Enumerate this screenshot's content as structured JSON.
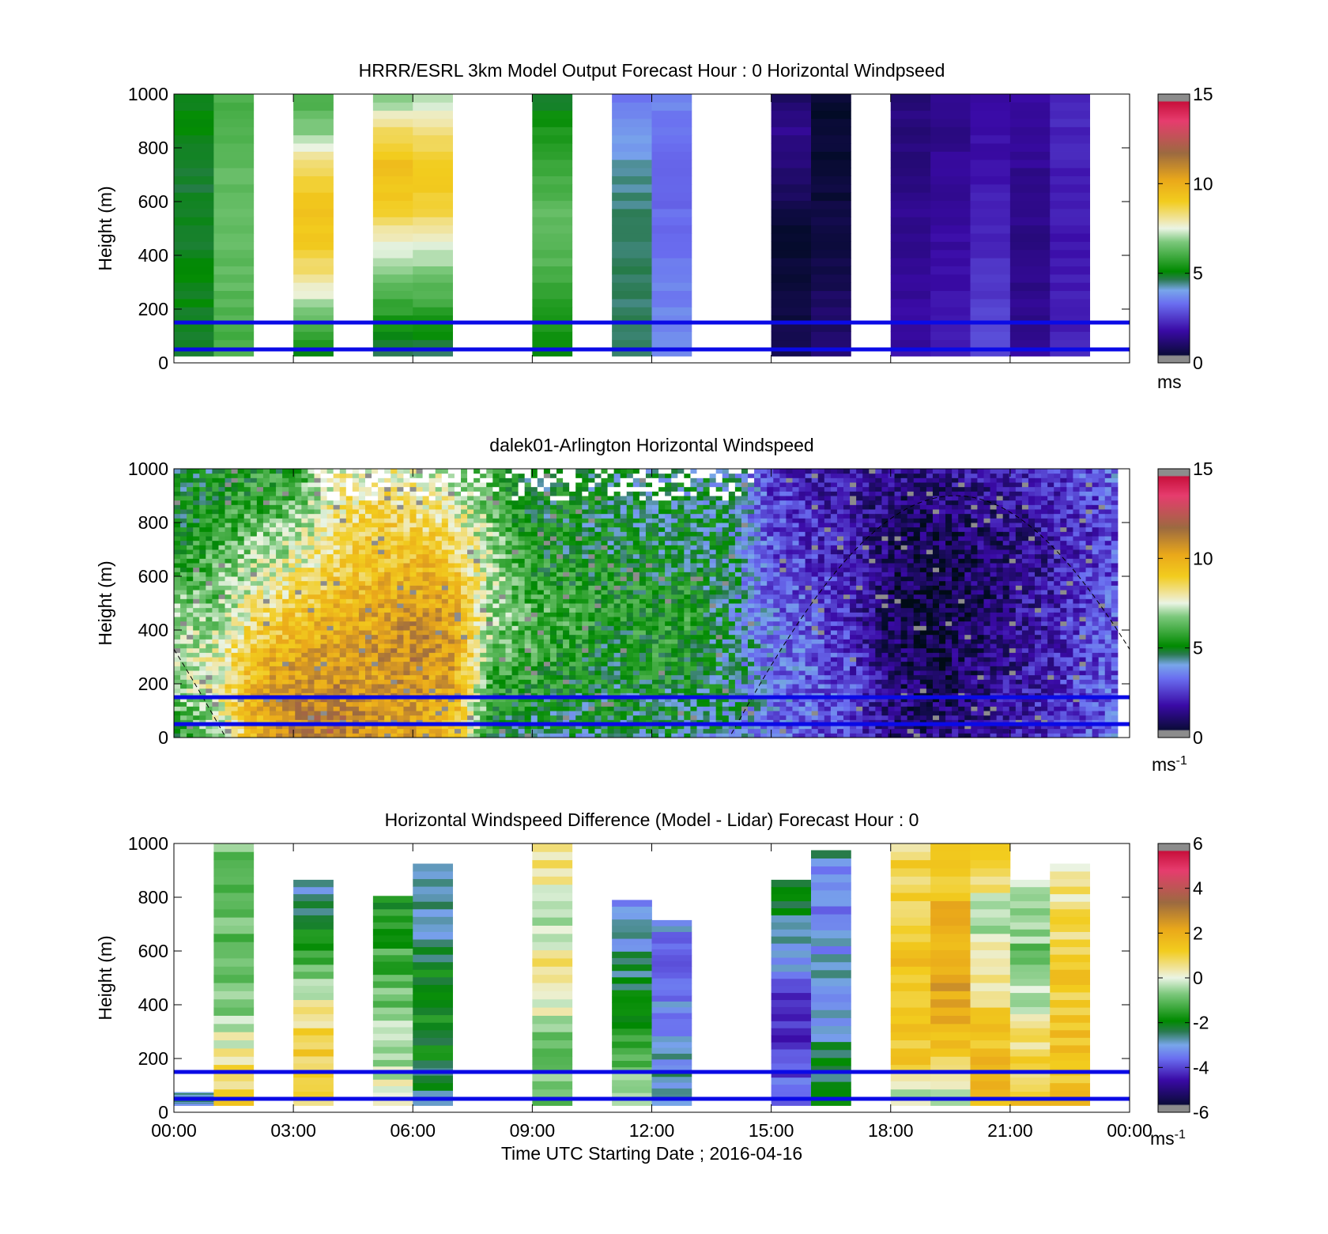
{
  "chart_data": [
    {
      "type": "heatmap",
      "title": "HRRR/ESRL 3km Model Output   Forecast Hour : 0 Horizontal Windpseed",
      "ylabel": "Height (m)",
      "ylim": [
        0,
        1000
      ],
      "yticks": [
        "0",
        "200",
        "400",
        "600",
        "800",
        "1000"
      ],
      "x_hours": [
        0,
        24
      ],
      "colorbar": {
        "min": 0,
        "max": 15,
        "ticks": [
          "0",
          "5",
          "10",
          "15"
        ],
        "unit": "ms",
        "unit_sup": ""
      },
      "columns": [
        {
          "t": 0,
          "dur": 1,
          "top": 1000,
          "bottom": 25,
          "v": [
            5.0,
            5.0,
            5.0,
            4.8,
            4.8,
            5.0,
            5.0
          ]
        },
        {
          "t": 1,
          "dur": 1,
          "top": 1000,
          "bottom": 25,
          "v": [
            6.0,
            6.2,
            6.4,
            6.5,
            6.4,
            6.2,
            6.0
          ]
        },
        {
          "t": 3,
          "dur": 1,
          "top": 1000,
          "bottom": 25,
          "v": [
            5.0,
            6.5,
            8.0,
            9.0,
            9.3,
            8.5,
            6.8,
            6.0
          ]
        },
        {
          "t": 5,
          "dur": 1,
          "top": 1000,
          "bottom": 25,
          "v": [
            4.5,
            5.5,
            6.5,
            7.5,
            9.0,
            9.5,
            8.5,
            6.5
          ]
        },
        {
          "t": 6,
          "dur": 1,
          "top": 1000,
          "bottom": 25,
          "v": [
            4.5,
            5.5,
            6.5,
            7.5,
            8.8,
            9.2,
            8.2,
            7.0
          ]
        },
        {
          "t": 9,
          "dur": 1,
          "top": 1000,
          "bottom": 25,
          "v": [
            5.0,
            5.5,
            6.0,
            6.3,
            6.3,
            6.0,
            5.5,
            4.8
          ]
        },
        {
          "t": 11,
          "dur": 1,
          "top": 1000,
          "bottom": 25,
          "v": [
            4.5,
            4.5,
            4.6,
            4.6,
            4.5,
            4.3,
            3.8,
            3.5
          ]
        },
        {
          "t": 12,
          "dur": 1,
          "top": 1000,
          "bottom": 25,
          "v": [
            3.8,
            3.6,
            3.5,
            3.3,
            3.2,
            3.4,
            3.6
          ]
        },
        {
          "t": 15,
          "dur": 1,
          "top": 1000,
          "bottom": 25,
          "v": [
            0.8,
            0.6,
            0.4,
            0.3,
            0.7,
            1.2,
            1.5,
            1.0
          ]
        },
        {
          "t": 16,
          "dur": 1,
          "top": 1000,
          "bottom": 25,
          "v": [
            1.2,
            1.0,
            0.8,
            0.6,
            0.5,
            0.4,
            0.4,
            0.3
          ]
        },
        {
          "t": 18,
          "dur": 1,
          "top": 1000,
          "bottom": 25,
          "v": [
            1.8,
            1.7,
            1.6,
            1.5,
            1.4,
            1.3,
            1.2
          ]
        },
        {
          "t": 19,
          "dur": 1,
          "top": 1000,
          "bottom": 25,
          "v": [
            2.0,
            1.9,
            1.8,
            1.7,
            1.6,
            1.5,
            1.4
          ]
        },
        {
          "t": 20,
          "dur": 1,
          "top": 1000,
          "bottom": 25,
          "v": [
            2.8,
            2.6,
            2.4,
            2.2,
            2.0,
            1.8,
            1.6
          ]
        },
        {
          "t": 21,
          "dur": 1,
          "top": 1000,
          "bottom": 25,
          "v": [
            1.6,
            1.5,
            1.4,
            1.4,
            1.5,
            1.6,
            1.7
          ]
        },
        {
          "t": 22,
          "dur": 1,
          "top": 1000,
          "bottom": 25,
          "v": [
            2.2,
            2.1,
            2.0,
            2.0,
            2.1,
            2.2,
            2.3
          ]
        }
      ],
      "hlines": [
        150,
        50
      ]
    },
    {
      "type": "heatmap",
      "title": "dalek01-Arlington  Horizontal Windspeed",
      "ylabel": "Height (m)",
      "ylim": [
        0,
        1000
      ],
      "yticks": [
        "0",
        "200",
        "400",
        "600",
        "800",
        "1000"
      ],
      "x_hours": [
        0,
        24
      ],
      "colorbar": {
        "min": 0,
        "max": 15,
        "ticks": [
          "0",
          "5",
          "10",
          "15"
        ],
        "unit": "ms",
        "unit_sup": "-1"
      },
      "profiles": [
        {
          "t": 0,
          "v": [
            5.5,
            6.5,
            7.0,
            6.5,
            5.5,
            5.0,
            5.0
          ]
        },
        {
          "t": 1,
          "v": [
            6.5,
            7.5,
            7.5,
            6.5,
            6.0,
            5.5,
            5.0
          ]
        },
        {
          "t": 2,
          "v": [
            9.5,
            10.0,
            9.0,
            8.0,
            7.0,
            6.0,
            5.5
          ]
        },
        {
          "t": 3,
          "v": [
            11.0,
            10.8,
            10.0,
            8.8,
            7.5,
            6.5,
            5.5
          ]
        },
        {
          "t": 4,
          "v": [
            11.5,
            11.0,
            10.2,
            9.5,
            8.5,
            8.0,
            7.5
          ]
        },
        {
          "t": 5,
          "v": [
            10.5,
            10.5,
            10.5,
            10.0,
            9.2,
            8.8,
            8.0
          ]
        },
        {
          "t": 6,
          "v": [
            10.0,
            10.5,
            11.0,
            10.5,
            9.5,
            8.5,
            7.5
          ]
        },
        {
          "t": 7,
          "v": [
            9.5,
            10.0,
            10.5,
            10.0,
            9.0,
            8.0,
            7.0
          ]
        },
        {
          "t": 8,
          "v": [
            5.0,
            5.5,
            6.5,
            7.0,
            7.0,
            6.5,
            6.0
          ]
        },
        {
          "t": 9,
          "v": [
            4.5,
            5.5,
            6.0,
            6.0,
            5.5,
            5.0,
            5.0
          ]
        },
        {
          "t": 10,
          "v": [
            4.5,
            5.0,
            5.5,
            6.0,
            5.0,
            5.0,
            5.0
          ]
        },
        {
          "t": 11,
          "v": [
            4.8,
            5.0,
            5.0,
            5.5,
            5.0,
            4.8,
            4.8
          ]
        },
        {
          "t": 12,
          "v": [
            4.8,
            5.0,
            5.5,
            5.5,
            5.0,
            4.8,
            4.5
          ]
        },
        {
          "t": 13,
          "v": [
            4.5,
            5.0,
            5.5,
            5.5,
            4.8,
            4.6,
            4.5
          ]
        },
        {
          "t": 14,
          "v": [
            4.0,
            4.5,
            4.5,
            4.5,
            4.5,
            4.5,
            4.5
          ]
        },
        {
          "t": 15,
          "v": [
            3.2,
            3.5,
            3.5,
            3.2,
            3.0,
            2.8,
            2.5
          ]
        },
        {
          "t": 16,
          "v": [
            3.0,
            3.2,
            3.0,
            2.8,
            2.5,
            2.2,
            2.0
          ]
        },
        {
          "t": 17,
          "v": [
            2.5,
            2.8,
            2.5,
            2.2,
            2.0,
            1.8,
            1.8
          ]
        },
        {
          "t": 18,
          "v": [
            1.5,
            1.2,
            1.0,
            0.8,
            1.0,
            1.2,
            1.5
          ]
        },
        {
          "t": 19,
          "v": [
            1.2,
            0.8,
            0.6,
            0.4,
            0.6,
            1.0,
            1.5
          ]
        },
        {
          "t": 20,
          "v": [
            1.5,
            1.2,
            1.0,
            0.8,
            1.0,
            1.2,
            1.8
          ]
        },
        {
          "t": 21,
          "v": [
            2.0,
            1.8,
            1.5,
            1.5,
            1.2,
            1.5,
            2.0
          ]
        },
        {
          "t": 22,
          "v": [
            2.5,
            2.2,
            2.0,
            2.0,
            1.8,
            2.0,
            2.5
          ]
        },
        {
          "t": 23,
          "v": [
            3.0,
            2.8,
            2.8,
            2.8,
            2.5,
            2.5,
            3.0
          ]
        },
        {
          "t": 24,
          "v": [
            3.5,
            3.2,
            3.0,
            3.0,
            3.0,
            3.0,
            3.5
          ]
        }
      ],
      "data_extent_hours": [
        0,
        23.7
      ],
      "hlines": [
        150,
        50
      ]
    },
    {
      "type": "heatmap",
      "title": "Horizontal Windspeed Difference (Model - Lidar) Forecast Hour : 0",
      "ylabel": "Height (m)",
      "ylim": [
        0,
        1000
      ],
      "yticks": [
        "0",
        "200",
        "400",
        "600",
        "800",
        "1000"
      ],
      "xticks": [
        "00:00",
        "03:00",
        "06:00",
        "09:00",
        "12:00",
        "15:00",
        "18:00",
        "21:00",
        "00:00"
      ],
      "xlabel": "Time UTC  Starting Date ; 2016-04-16",
      "x_hours": [
        0,
        24
      ],
      "colorbar": {
        "min": -6,
        "max": 6,
        "ticks": [
          "-6",
          "-4",
          "-2",
          "0",
          "2",
          "4",
          "6"
        ],
        "unit": "ms",
        "unit_sup": "-1"
      },
      "columns": [
        {
          "t": 0,
          "dur": 1,
          "top": 75,
          "bottom": 25,
          "v": [
            -2.8
          ]
        },
        {
          "t": 1,
          "dur": 1,
          "top": 1000,
          "bottom": 25,
          "v": [
            1.0,
            0.8,
            -0.3,
            -0.6,
            -0.9,
            -1.0,
            -1.1,
            -1.0
          ]
        },
        {
          "t": 3,
          "dur": 1,
          "top": 865,
          "bottom": 25,
          "v": [
            1.0,
            1.2,
            1.0,
            0.2,
            -0.8,
            -1.8,
            -2.5,
            -2.8
          ]
        },
        {
          "t": 5,
          "dur": 1,
          "top": 805,
          "bottom": 25,
          "v": [
            0.2,
            -0.2,
            -0.5,
            -0.9,
            -1.2,
            -1.6,
            -1.9
          ]
        },
        {
          "t": 6,
          "dur": 1,
          "top": 925,
          "bottom": 25,
          "v": [
            -2.8,
            -2.2,
            -1.8,
            -1.9,
            -2.2,
            -2.6,
            -2.9,
            -2.9
          ]
        },
        {
          "t": 9,
          "dur": 1,
          "top": 1000,
          "bottom": 25,
          "v": [
            -1.2,
            -0.8,
            -0.6,
            0.2,
            0.4,
            -0.2,
            0.4,
            0.8
          ]
        },
        {
          "t": 11,
          "dur": 1,
          "top": 790,
          "bottom": 25,
          "v": [
            -0.5,
            -1.0,
            -1.5,
            -2.0,
            -2.5,
            -2.8,
            -3.0
          ]
        },
        {
          "t": 12,
          "dur": 1,
          "top": 715,
          "bottom": 25,
          "v": [
            -2.6,
            -2.8,
            -3.0,
            -3.2,
            -3.4,
            -3.6,
            -3.2
          ]
        },
        {
          "t": 15,
          "dur": 1,
          "top": 865,
          "bottom": 25,
          "v": [
            -3.6,
            -3.8,
            -4.6,
            -3.8,
            -3.0,
            -2.4,
            -1.8
          ]
        },
        {
          "t": 16,
          "dur": 1,
          "top": 975,
          "bottom": 25,
          "v": [
            -1.8,
            -2.4,
            -2.8,
            -3.0,
            -3.2,
            -3.4,
            -2.8
          ]
        },
        {
          "t": 18,
          "dur": 1,
          "top": 1000,
          "bottom": 25,
          "v": [
            -0.5,
            1.2,
            1.4,
            1.4,
            1.3,
            1.1,
            0.6
          ]
        },
        {
          "t": 19,
          "dur": 1,
          "top": 1000,
          "bottom": 25,
          "v": [
            -1.0,
            0.4,
            1.8,
            2.2,
            2.0,
            1.8,
            1.5,
            0.8
          ]
        },
        {
          "t": 20,
          "dur": 1,
          "top": 1000,
          "bottom": 25,
          "v": [
            1.7,
            1.6,
            1.4,
            0.8,
            0.2,
            -0.4,
            0.5,
            1.0
          ]
        },
        {
          "t": 21,
          "dur": 1,
          "top": 865,
          "bottom": 25,
          "v": [
            1.3,
            1.0,
            0.5,
            -0.4,
            -0.8,
            -0.6,
            -0.4
          ]
        },
        {
          "t": 22,
          "dur": 1,
          "top": 925,
          "bottom": 25,
          "v": [
            1.5,
            1.4,
            1.3,
            1.2,
            1.0,
            0.6,
            0.4
          ]
        }
      ],
      "hlines": [
        150,
        50
      ]
    }
  ]
}
